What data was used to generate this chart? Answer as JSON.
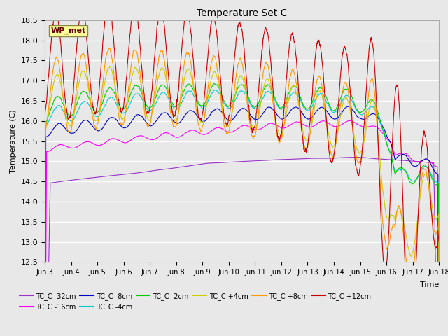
{
  "title": "Temperature Set C",
  "ylabel": "Temperature (C)",
  "ylim": [
    12.5,
    18.5
  ],
  "xlim": [
    0,
    360
  ],
  "background_color": "#e8e8e8",
  "plot_bg_color": "#e8e8e8",
  "grid_color": "white",
  "series": [
    {
      "label": "TC_C -32cm",
      "color": "#9933cc"
    },
    {
      "label": "TC_C -16cm",
      "color": "#ff00ff"
    },
    {
      "label": "TC_C -8cm",
      "color": "#0000cc"
    },
    {
      "label": "TC_C -4cm",
      "color": "#00cccc"
    },
    {
      "label": "TC_C -2cm",
      "color": "#00cc00"
    },
    {
      "label": "TC_C +4cm",
      "color": "#cccc00"
    },
    {
      "label": "TC_C +8cm",
      "color": "#ff9900"
    },
    {
      "label": "TC_C +12cm",
      "color": "#cc0000"
    }
  ],
  "xtick_labels": [
    "Jun 3",
    "Jun 4",
    "Jun 5",
    "Jun 6",
    "Jun 7",
    "Jun 8",
    "Jun 9",
    "Jun 10",
    "Jun 11",
    "Jun 12",
    "Jun 13",
    "Jun 14",
    "Jun 15",
    "Jun 16",
    "Jun 17",
    "Jun 18"
  ],
  "xtick_positions": [
    0,
    24,
    48,
    72,
    96,
    120,
    144,
    168,
    192,
    216,
    240,
    264,
    288,
    312,
    336,
    360
  ],
  "ytick_labels": [
    "12.5",
    "13.0",
    "13.5",
    "14.0",
    "14.5",
    "15.0",
    "15.5",
    "16.0",
    "16.5",
    "17.0",
    "17.5",
    "18.0",
    "18.5"
  ],
  "ytick_values": [
    12.5,
    13.0,
    13.5,
    14.0,
    14.5,
    15.0,
    15.5,
    16.0,
    16.5,
    17.0,
    17.5,
    18.0,
    18.5
  ],
  "wp_met_label": "WP_met",
  "wp_met_box_color": "#ffff99",
  "wp_met_text_color": "#660000",
  "time_label": "Time"
}
